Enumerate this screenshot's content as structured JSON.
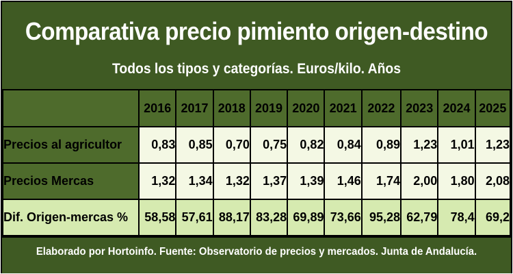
{
  "chart_data": {
    "type": "table",
    "title": "Comparativa precio pimiento origen-destino",
    "subtitle": "Todos los tipos y categorías. Euros/kilo. Años",
    "columns": [
      "2016",
      "2017",
      "2018",
      "2019",
      "2020",
      "2021",
      "2022",
      "2023",
      "2024",
      "2025"
    ],
    "rows": [
      {
        "label": "Precios al agricultor",
        "values": [
          "0,83",
          "0,85",
          "0,70",
          "0,75",
          "0,82",
          "0,84",
          "0,89",
          "1,23",
          "1,01",
          "1,23"
        ]
      },
      {
        "label": "Precios Mercas",
        "values": [
          "1,32",
          "1,34",
          "1,32",
          "1,37",
          "1,39",
          "1,46",
          "1,74",
          "2,00",
          "1,80",
          "2,08"
        ]
      },
      {
        "label": "Dif. Origen-mercas %",
        "values": [
          "58,58",
          "57,61",
          "88,17",
          "83,28",
          "69,89",
          "73,66",
          "95,28",
          "62,79",
          "78,4",
          "69,2"
        ]
      }
    ],
    "footer": "Elaborado por Hortoinfo. Fuente: Observatorio de precios y mercados. Junta de Andalucía."
  },
  "colors": {
    "dark_green": "#3f5a23",
    "cell_green": "#4e6b2c",
    "light_cell": "#f4f8e4",
    "highlight_row": "#d6eab0"
  }
}
